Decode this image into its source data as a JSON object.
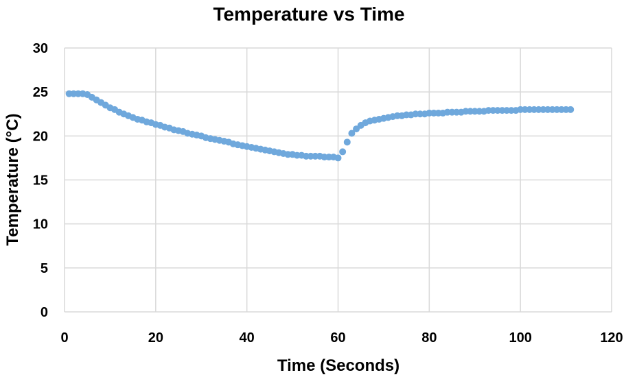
{
  "chart_data": {
    "type": "scatter",
    "title": "Temperature vs Time",
    "xlabel": "Time (Seconds)",
    "ylabel": "Temperature (°C)",
    "xlim": [
      0,
      120
    ],
    "ylim": [
      0,
      30
    ],
    "xticks": [
      "0",
      "20",
      "40",
      "60",
      "80",
      "100",
      "120"
    ],
    "yticks": [
      "0",
      "5",
      "10",
      "15",
      "20",
      "25",
      "30"
    ],
    "grid": true,
    "legend": "none",
    "colors": {
      "series": "#6fa8dc",
      "grid": "#d9d9d9"
    },
    "series": [
      {
        "points": [
          [
            1,
            24.8
          ],
          [
            2,
            24.8
          ],
          [
            3,
            24.8
          ],
          [
            4,
            24.8
          ],
          [
            5,
            24.7
          ],
          [
            6,
            24.4
          ],
          [
            7,
            24.1
          ],
          [
            8,
            23.8
          ],
          [
            9,
            23.5
          ],
          [
            10,
            23.2
          ],
          [
            11,
            23.0
          ],
          [
            12,
            22.7
          ],
          [
            13,
            22.5
          ],
          [
            14,
            22.3
          ],
          [
            15,
            22.1
          ],
          [
            16,
            21.9
          ],
          [
            17,
            21.8
          ],
          [
            18,
            21.6
          ],
          [
            19,
            21.5
          ],
          [
            20,
            21.3
          ],
          [
            21,
            21.2
          ],
          [
            22,
            21.0
          ],
          [
            23,
            20.9
          ],
          [
            24,
            20.7
          ],
          [
            25,
            20.6
          ],
          [
            26,
            20.5
          ],
          [
            27,
            20.3
          ],
          [
            28,
            20.2
          ],
          [
            29,
            20.1
          ],
          [
            30,
            20.0
          ],
          [
            31,
            19.8
          ],
          [
            32,
            19.7
          ],
          [
            33,
            19.6
          ],
          [
            34,
            19.5
          ],
          [
            35,
            19.4
          ],
          [
            36,
            19.3
          ],
          [
            37,
            19.1
          ],
          [
            38,
            19.0
          ],
          [
            39,
            18.9
          ],
          [
            40,
            18.8
          ],
          [
            41,
            18.7
          ],
          [
            42,
            18.6
          ],
          [
            43,
            18.5
          ],
          [
            44,
            18.4
          ],
          [
            45,
            18.3
          ],
          [
            46,
            18.2
          ],
          [
            47,
            18.1
          ],
          [
            48,
            18.0
          ],
          [
            49,
            17.9
          ],
          [
            50,
            17.9
          ],
          [
            51,
            17.8
          ],
          [
            52,
            17.8
          ],
          [
            53,
            17.7
          ],
          [
            54,
            17.7
          ],
          [
            55,
            17.7
          ],
          [
            56,
            17.7
          ],
          [
            57,
            17.6
          ],
          [
            58,
            17.6
          ],
          [
            59,
            17.6
          ],
          [
            60,
            17.5
          ],
          [
            61,
            18.2
          ],
          [
            62,
            19.3
          ],
          [
            63,
            20.3
          ],
          [
            64,
            20.8
          ],
          [
            65,
            21.2
          ],
          [
            66,
            21.5
          ],
          [
            67,
            21.7
          ],
          [
            68,
            21.8
          ],
          [
            69,
            21.9
          ],
          [
            70,
            22.0
          ],
          [
            71,
            22.1
          ],
          [
            72,
            22.2
          ],
          [
            73,
            22.3
          ],
          [
            74,
            22.3
          ],
          [
            75,
            22.4
          ],
          [
            76,
            22.4
          ],
          [
            77,
            22.5
          ],
          [
            78,
            22.5
          ],
          [
            79,
            22.5
          ],
          [
            80,
            22.6
          ],
          [
            81,
            22.6
          ],
          [
            82,
            22.6
          ],
          [
            83,
            22.6
          ],
          [
            84,
            22.7
          ],
          [
            85,
            22.7
          ],
          [
            86,
            22.7
          ],
          [
            87,
            22.7
          ],
          [
            88,
            22.8
          ],
          [
            89,
            22.8
          ],
          [
            90,
            22.8
          ],
          [
            91,
            22.8
          ],
          [
            92,
            22.8
          ],
          [
            93,
            22.9
          ],
          [
            94,
            22.9
          ],
          [
            95,
            22.9
          ],
          [
            96,
            22.9
          ],
          [
            97,
            22.9
          ],
          [
            98,
            22.9
          ],
          [
            99,
            22.9
          ],
          [
            100,
            23.0
          ],
          [
            101,
            23.0
          ],
          [
            102,
            23.0
          ],
          [
            103,
            23.0
          ],
          [
            104,
            23.0
          ],
          [
            105,
            23.0
          ],
          [
            106,
            23.0
          ],
          [
            107,
            23.0
          ],
          [
            108,
            23.0
          ],
          [
            109,
            23.0
          ],
          [
            110,
            23.0
          ],
          [
            111,
            23.0
          ]
        ]
      }
    ]
  }
}
